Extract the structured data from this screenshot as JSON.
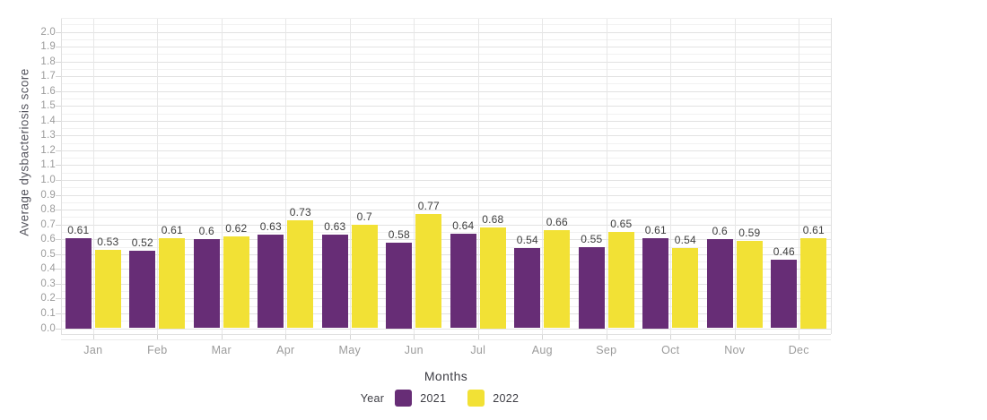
{
  "chart_data": {
    "type": "bar",
    "title": "",
    "xlabel": "Months",
    "ylabel": "Average dysbacteriosis score",
    "legend_title": "Year",
    "legend_position": "bottom-center",
    "grid": true,
    "background": "#ffffff",
    "categories": [
      "Jan",
      "Feb",
      "Mar",
      "Apr",
      "May",
      "Jun",
      "Jul",
      "Aug",
      "Sep",
      "Oct",
      "Nov",
      "Dec"
    ],
    "ylim": [
      0,
      2.0
    ],
    "y_tick_step": 0.1,
    "y_ticks": [
      "0.0",
      "0.1",
      "0.2",
      "0.3",
      "0.4",
      "0.5",
      "0.6",
      "0.7",
      "0.8",
      "0.9",
      "1.0",
      "1.1",
      "1.2",
      "1.3",
      "1.4",
      "1.5",
      "1.6",
      "1.7",
      "1.8",
      "1.9",
      "2.0"
    ],
    "series": [
      {
        "name": "2021",
        "color": "#672d76",
        "values": [
          0.61,
          0.52,
          0.6,
          0.63,
          0.63,
          0.58,
          0.64,
          0.54,
          0.55,
          0.61,
          0.6,
          0.46
        ],
        "labels": [
          "0.61",
          "0.52",
          "0.6",
          "0.63",
          "0.63",
          "0.58",
          "0.64",
          "0.54",
          "0.55",
          "0.61",
          "0.6",
          "0.46"
        ]
      },
      {
        "name": "2022",
        "color": "#f2e135",
        "values": [
          0.53,
          0.61,
          0.62,
          0.73,
          0.7,
          0.77,
          0.68,
          0.66,
          0.65,
          0.54,
          0.59,
          0.61
        ],
        "labels": [
          "0.53",
          "0.61",
          "0.62",
          "0.73",
          "0.7",
          "0.77",
          "0.68",
          "0.66",
          "0.65",
          "0.54",
          "0.59",
          "0.61"
        ]
      }
    ]
  }
}
